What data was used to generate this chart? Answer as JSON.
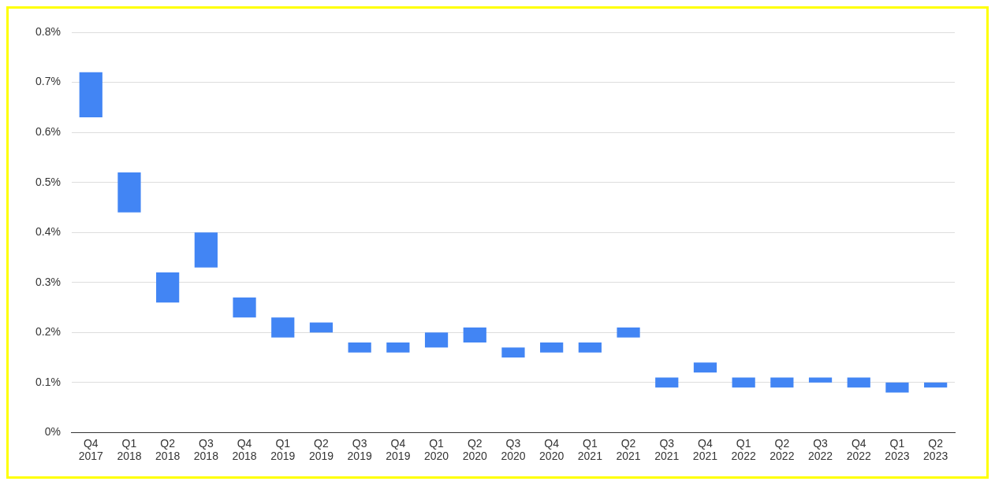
{
  "chart_data": {
    "type": "bar",
    "categories": [
      "Q4 2017",
      "Q1 2018",
      "Q2 2018",
      "Q3 2018",
      "Q4 2018",
      "Q1 2019",
      "Q2 2019",
      "Q3 2019",
      "Q4 2019",
      "Q1 2020",
      "Q2 2020",
      "Q3 2020",
      "Q4 2020",
      "Q1 2021",
      "Q2 2021",
      "Q3 2021",
      "Q4 2021",
      "Q1 2022",
      "Q2 2022",
      "Q3 2022",
      "Q4 2022",
      "Q1 2023",
      "Q2 2023"
    ],
    "base": [
      0.63,
      0.44,
      0.26,
      0.33,
      0.23,
      0.19,
      0.2,
      0.16,
      0.16,
      0.17,
      0.18,
      0.15,
      0.16,
      0.16,
      0.19,
      0.09,
      0.12,
      0.09,
      0.09,
      0.1,
      0.09,
      0.08,
      0.09
    ],
    "values": [
      0.09,
      0.08,
      0.06,
      0.07,
      0.04,
      0.04,
      0.02,
      0.02,
      0.02,
      0.03,
      0.03,
      0.02,
      0.02,
      0.02,
      0.02,
      0.02,
      0.02,
      0.02,
      0.02,
      0.01,
      0.02,
      0.02,
      0.01
    ],
    "color": "#4285f4",
    "ylim": [
      0,
      0.8
    ],
    "yticks": [
      {
        "value": 0,
        "label": "0%"
      },
      {
        "value": 0.1,
        "label": "0.1%"
      },
      {
        "value": 0.2,
        "label": "0.2%"
      },
      {
        "value": 0.3,
        "label": "0.3%"
      },
      {
        "value": 0.4,
        "label": "0.4%"
      },
      {
        "value": 0.5,
        "label": "0.5%"
      },
      {
        "value": 0.6,
        "label": "0.6%"
      },
      {
        "value": 0.7,
        "label": "0.7%"
      },
      {
        "value": 0.8,
        "label": "0.8%"
      }
    ],
    "grid": "y"
  }
}
